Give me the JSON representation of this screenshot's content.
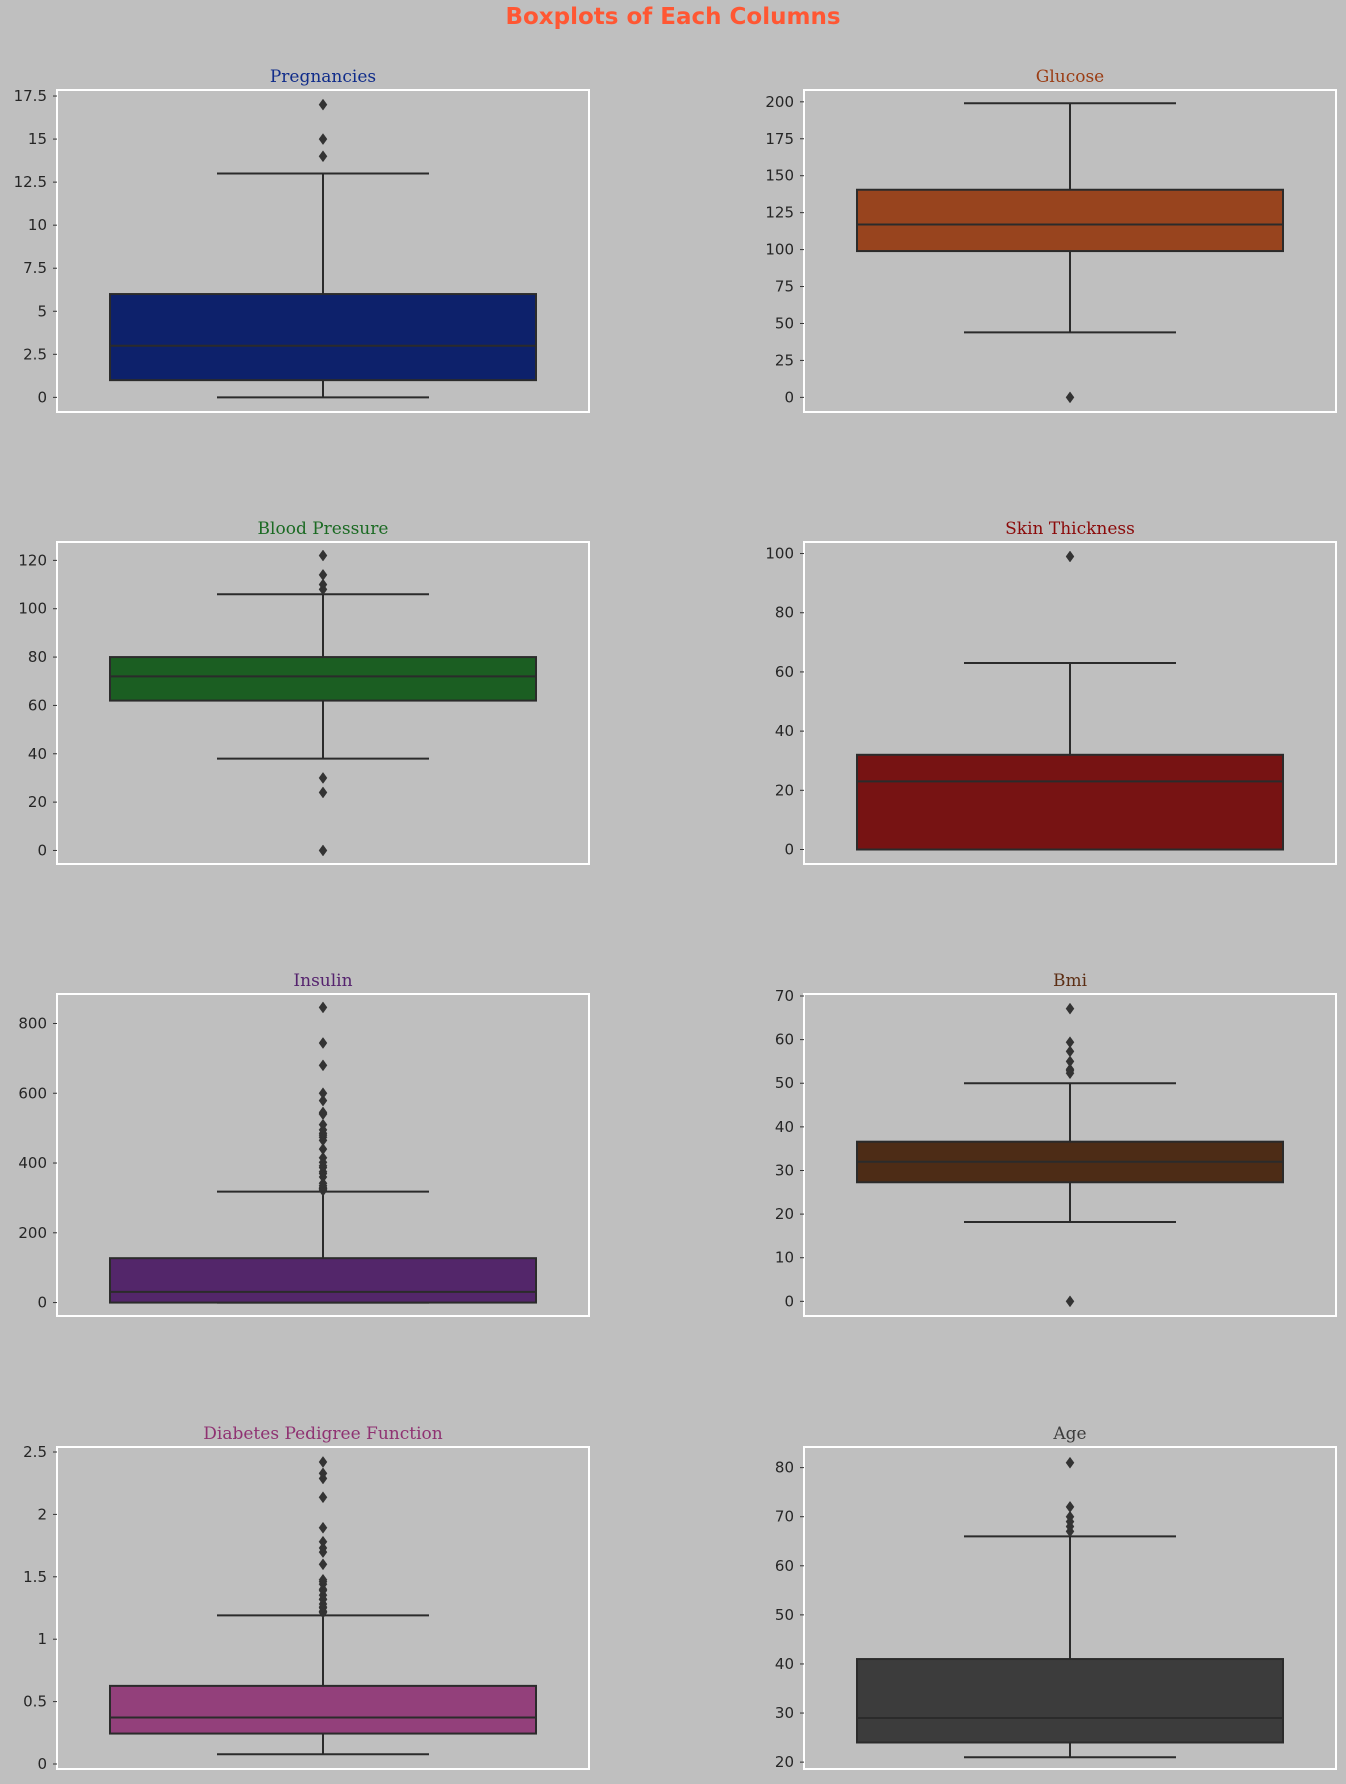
{
  "figure": {
    "title": "Boxplots of Each Columns",
    "title_color": "#ff5733",
    "background": "#bfbfbf"
  },
  "chart_data": [
    {
      "type": "box",
      "title": "Pregnancies",
      "title_color": "#102c8a",
      "box_color": "#0d216b",
      "ylim": [
        -0.85,
        17.85
      ],
      "yticks": [
        0,
        2.5,
        5,
        7.5,
        10,
        12.5,
        15,
        17.5
      ],
      "ytick_labels": [
        "0",
        "2.5",
        "5",
        "7.5",
        "10",
        "12.5",
        "15",
        "17.5"
      ],
      "whisker_low": 0,
      "q1": 1,
      "median": 3,
      "q3": 6,
      "whisker_high": 13,
      "outliers": [
        14,
        15,
        17
      ]
    },
    {
      "type": "box",
      "title": "Glucose",
      "title_color": "#9b3d14",
      "box_color": "#98441e",
      "ylim": [
        -9.9,
        208
      ],
      "yticks": [
        0,
        25,
        50,
        75,
        100,
        125,
        150,
        175,
        200
      ],
      "ytick_labels": [
        "0",
        "25",
        "50",
        "75",
        "100",
        "125",
        "150",
        "175",
        "200"
      ],
      "whisker_low": 44,
      "q1": 99,
      "median": 117,
      "q3": 140.5,
      "whisker_high": 199,
      "outliers": [
        0
      ]
    },
    {
      "type": "box",
      "title": "Blood Pressure",
      "title_color": "#1b6a23",
      "box_color": "#1b5e22",
      "ylim": [
        -5.6,
        127.6
      ],
      "yticks": [
        0,
        20,
        40,
        60,
        80,
        100,
        120
      ],
      "ytick_labels": [
        "0",
        "20",
        "40",
        "60",
        "80",
        "100",
        "120"
      ],
      "whisker_low": 38,
      "q1": 62,
      "median": 72,
      "q3": 80,
      "whisker_high": 106,
      "outliers": [
        0,
        24,
        30,
        108,
        110,
        114,
        122
      ]
    },
    {
      "type": "box",
      "title": "Skin Thickness",
      "title_color": "#8b0a0a",
      "box_color": "#771313",
      "ylim": [
        -4.9,
        103.9
      ],
      "yticks": [
        0,
        20,
        40,
        60,
        80,
        100
      ],
      "ytick_labels": [
        "0",
        "20",
        "40",
        "60",
        "80",
        "100"
      ],
      "whisker_low": 0,
      "q1": 0,
      "median": 23,
      "q3": 32,
      "whisker_high": 63,
      "outliers": [
        99
      ]
    },
    {
      "type": "box",
      "title": "Insulin",
      "title_color": "#55236e",
      "box_color": "#53266a",
      "ylim": [
        -38.5,
        884.5
      ],
      "yticks": [
        0,
        200,
        400,
        600,
        800
      ],
      "ytick_labels": [
        "0",
        "200",
        "400",
        "600",
        "800"
      ],
      "whisker_low": 0,
      "q1": 0,
      "median": 30.5,
      "q3": 127.25,
      "whisker_high": 318,
      "outliers": [
        321,
        325,
        326,
        328,
        330,
        335,
        342,
        360,
        370,
        375,
        387,
        392,
        402,
        415,
        440,
        465,
        474,
        480,
        485,
        495,
        510,
        540,
        543,
        545,
        579,
        600,
        680,
        744,
        846
      ]
    },
    {
      "type": "box",
      "title": "Bmi",
      "title_color": "#5c2e14",
      "box_color": "#4d2c16",
      "ylim": [
        -3.36,
        70.46
      ],
      "yticks": [
        0,
        10,
        20,
        30,
        40,
        50,
        60,
        70
      ],
      "ytick_labels": [
        "0",
        "10",
        "20",
        "30",
        "40",
        "50",
        "60",
        "70"
      ],
      "whisker_low": 18.2,
      "q1": 27.3,
      "median": 32,
      "q3": 36.6,
      "whisker_high": 50,
      "outliers": [
        0,
        52.3,
        52.9,
        53.2,
        55,
        57.3,
        59.4,
        67.1
      ]
    },
    {
      "type": "box",
      "title": "Diabetes Pedigree Function",
      "title_color": "#8f3272",
      "box_color": "#93407b",
      "ylim": [
        -0.04,
        2.54
      ],
      "yticks": [
        0,
        0.5,
        1,
        1.5,
        2,
        2.5
      ],
      "ytick_labels": [
        "0",
        "0.5",
        "1",
        "1.5",
        "2",
        "2.5"
      ],
      "whisker_low": 0.078,
      "q1": 0.244,
      "median": 0.3725,
      "q3": 0.626,
      "whisker_high": 1.191,
      "outliers": [
        1.213,
        1.222,
        1.224,
        1.251,
        1.258,
        1.282,
        1.318,
        1.321,
        1.353,
        1.39,
        1.4,
        1.441,
        1.461,
        1.476,
        1.6,
        1.698,
        1.731,
        1.781,
        1.893,
        2.137,
        2.288,
        2.329,
        2.42
      ]
    },
    {
      "type": "box",
      "title": "Age",
      "title_color": "#3c3c3c",
      "box_color": "#3c3c3c",
      "ylim": [
        18.6,
        84.2
      ],
      "yticks": [
        20,
        30,
        40,
        50,
        60,
        70,
        80
      ],
      "ytick_labels": [
        "20",
        "30",
        "40",
        "50",
        "60",
        "70",
        "80"
      ],
      "whisker_low": 21,
      "q1": 24,
      "median": 29,
      "q3": 41,
      "whisker_high": 66,
      "outliers": [
        67,
        68,
        69,
        70,
        72,
        81
      ]
    }
  ]
}
